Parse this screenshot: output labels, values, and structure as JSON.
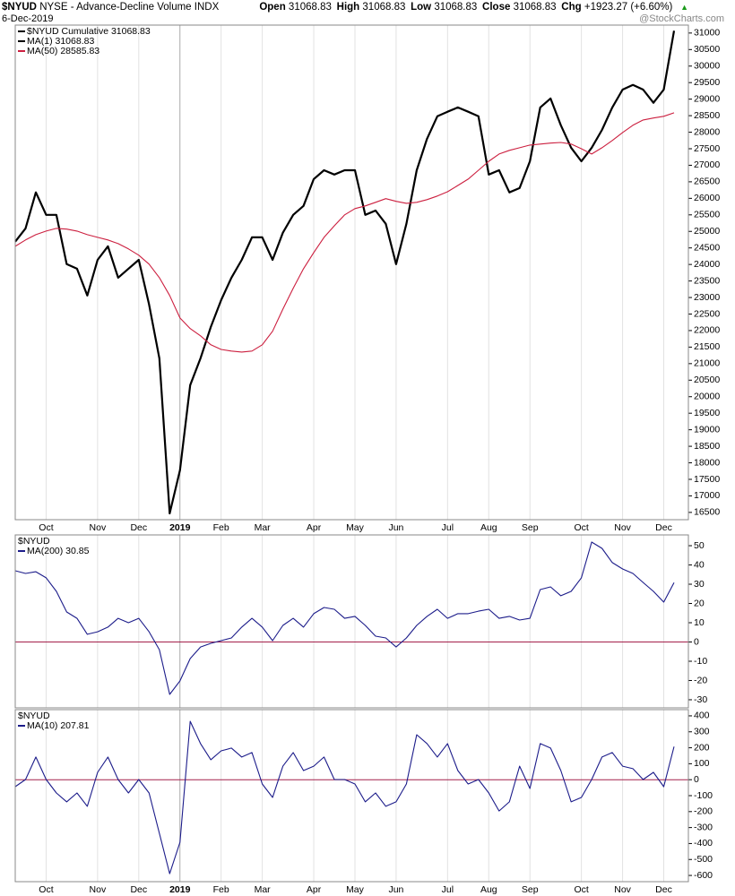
{
  "header": {
    "symbol": "$NYUD",
    "name": "NYSE - Advance-Decline Volume INDX",
    "date": "6-Dec-2019",
    "quote": [
      {
        "label": "Open",
        "value": "31068.83"
      },
      {
        "label": "High",
        "value": "31068.83"
      },
      {
        "label": "Low",
        "value": "31068.83"
      },
      {
        "label": "Close",
        "value": "31068.83"
      },
      {
        "label": "Chg",
        "value": "+1923.27 (+6.60%)"
      }
    ],
    "source": "@StockCharts.com"
  },
  "chart_data": [
    {
      "type": "line",
      "label": "$NYUD Cumulative 31068.83",
      "label_color": "#000000",
      "grid": "x",
      "bold_categories": [
        "2019"
      ],
      "categories": [
        null,
        null,
        null,
        "Oct",
        null,
        null,
        null,
        null,
        "Nov",
        null,
        null,
        null,
        "Dec",
        null,
        null,
        null,
        "2019",
        null,
        null,
        null,
        "Feb",
        null,
        null,
        null,
        "Mar",
        null,
        null,
        null,
        null,
        "Apr",
        null,
        null,
        null,
        "May",
        null,
        null,
        null,
        "Jun",
        null,
        null,
        null,
        null,
        "Jul",
        null,
        null,
        null,
        "Aug",
        null,
        null,
        null,
        "Sep",
        null,
        null,
        null,
        null,
        "Oct",
        null,
        null,
        null,
        "Nov",
        null,
        null,
        null,
        "Dec",
        null
      ],
      "ylim": [
        16280,
        31240
      ],
      "yticks": [
        16500,
        17000,
        17500,
        18000,
        18500,
        19000,
        19500,
        20000,
        20500,
        21000,
        21500,
        22000,
        22500,
        23000,
        23500,
        24000,
        24500,
        25000,
        25500,
        26000,
        26500,
        27000,
        27500,
        28000,
        28500,
        29000,
        29500,
        30000,
        30500,
        31000
      ],
      "series": [
        {
          "name": "MA(1) 31068.83",
          "color": "#000000",
          "width": 2.2,
          "values": [
            24690,
            25090,
            26180,
            25500,
            25500,
            24010,
            23870,
            23060,
            24140,
            24550,
            23600,
            23870,
            24140,
            22790,
            21160,
            16470,
            17780,
            20350,
            21160,
            22110,
            22920,
            23600,
            24140,
            24820,
            24820,
            24140,
            24960,
            25500,
            25770,
            26580,
            26850,
            26720,
            26850,
            26850,
            25500,
            25630,
            25230,
            24010,
            25230,
            26850,
            27800,
            28480,
            28620,
            28750,
            28620,
            28480,
            26720,
            26850,
            26180,
            26310,
            27120,
            28750,
            29020,
            28210,
            27530,
            27120,
            27530,
            28070,
            28750,
            29290,
            29430,
            29290,
            28890,
            29290,
            31068.83
          ]
        },
        {
          "name": "MA(50) 28585.83",
          "color": "#cc1f3f",
          "width": 1.1,
          "values": [
            24550,
            24740,
            24900,
            25010,
            25090,
            25070,
            25010,
            24900,
            24820,
            24740,
            24630,
            24470,
            24280,
            24010,
            23600,
            23060,
            22380,
            22060,
            21840,
            21570,
            21430,
            21380,
            21350,
            21380,
            21570,
            21980,
            22650,
            23280,
            23870,
            24360,
            24820,
            25170,
            25500,
            25690,
            25770,
            25880,
            25990,
            25910,
            25850,
            25880,
            25960,
            26070,
            26200,
            26390,
            26580,
            26850,
            27120,
            27340,
            27450,
            27530,
            27610,
            27640,
            27670,
            27690,
            27640,
            27500,
            27340,
            27530,
            27750,
            27990,
            28210,
            28370,
            28430,
            28480,
            28585.83
          ]
        }
      ]
    },
    {
      "type": "line",
      "label": "$NYUD",
      "grid": "x",
      "hline": 0,
      "hline_color": "#a3204a",
      "ylim": [
        -34.2,
        55.6
      ],
      "yticks": [
        -30,
        -20,
        -10,
        0,
        10,
        20,
        30,
        40,
        50
      ],
      "series": [
        {
          "name": "MA(200) 30.85",
          "color": "#1c1c8a",
          "width": 1.1,
          "values": [
            37,
            35.6,
            36.5,
            33.3,
            26.3,
            15.6,
            12.3,
            4,
            5.3,
            7.7,
            12.3,
            10,
            12.3,
            5.3,
            -4,
            -27.2,
            -20.2,
            -8.6,
            -2.6,
            -0.7,
            0.7,
            2.1,
            7.7,
            12.3,
            7.7,
            0.7,
            8.6,
            12.3,
            7.7,
            14.7,
            17.9,
            17,
            12.3,
            13.3,
            8.6,
            3,
            2.1,
            -2.6,
            2.1,
            8.6,
            13.3,
            17,
            12.3,
            14.7,
            14.7,
            16,
            17,
            12.3,
            13.3,
            11.4,
            12.3,
            27.2,
            28.6,
            24,
            26.3,
            33.3,
            51.9,
            48.6,
            41.2,
            37.9,
            35.6,
            30.9,
            26.3,
            20.7,
            30.85
          ]
        }
      ]
    },
    {
      "type": "line",
      "label": "$NYUD",
      "grid": "x",
      "hline": 0,
      "hline_color": "#a3204a",
      "bold_categories": [
        "2019"
      ],
      "categories": [
        null,
        null,
        null,
        "Oct",
        null,
        null,
        null,
        null,
        "Nov",
        null,
        null,
        null,
        "Dec",
        null,
        null,
        null,
        "2019",
        null,
        null,
        null,
        "Feb",
        null,
        null,
        null,
        "Mar",
        null,
        null,
        null,
        null,
        "Apr",
        null,
        null,
        null,
        "May",
        null,
        null,
        null,
        "Jun",
        null,
        null,
        null,
        null,
        "Jul",
        null,
        null,
        null,
        "Aug",
        null,
        null,
        null,
        "Sep",
        null,
        null,
        null,
        null,
        "Oct",
        null,
        null,
        null,
        "Nov",
        null,
        null,
        null,
        "Dec",
        null
      ],
      "ylim": [
        -639,
        439
      ],
      "yticks": [
        -600,
        -500,
        -400,
        -300,
        -200,
        -100,
        0,
        100,
        200,
        300,
        400
      ],
      "series": [
        {
          "name": "MA(10) 207.81",
          "color": "#1c1c8a",
          "width": 1.1,
          "values": [
            -44,
            1,
            142,
            1,
            -83,
            -139,
            -83,
            -167,
            46,
            142,
            1,
            -83,
            1,
            -83,
            -336,
            -589,
            -392,
            366,
            226,
            125,
            181,
            198,
            142,
            170,
            -27,
            -111,
            85,
            170,
            57,
            85,
            142,
            1,
            1,
            -27,
            -139,
            -83,
            -167,
            -139,
            -27,
            282,
            226,
            142,
            226,
            57,
            -27,
            1,
            -83,
            -196,
            -139,
            85,
            -55,
            226,
            198,
            57,
            -139,
            -111,
            1,
            142,
            170,
            85,
            69,
            1,
            46,
            -44,
            207.81
          ]
        }
      ]
    }
  ]
}
